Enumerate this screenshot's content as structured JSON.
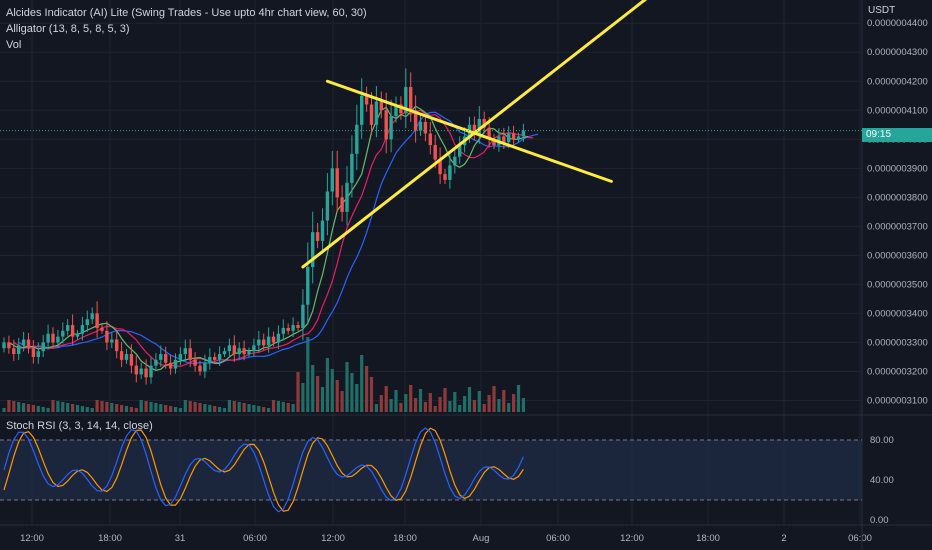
{
  "currency": "USDT",
  "legend": {
    "line1": "Alcides Indicator (AI) Lite (Swing Trades - Use upto 4hr chart view, 60, 30)",
    "line2": "Alligator (13, 8, 5, 8, 5, 3)",
    "line3": "Vol",
    "stoch_label": "Stoch RSI (3, 3, 14, 14, close)"
  },
  "countdown": "09:15",
  "colors": {
    "background": "#131722",
    "up": "#26a69a",
    "down": "#ef5350",
    "trendline": "#ffeb3b",
    "jaw": "#2962ff",
    "teeth": "#e91e63",
    "lips": "#66bb6a",
    "stoch_k": "#2962ff",
    "stoch_d": "#ff9800"
  },
  "chart_data": [
    {
      "type": "candlestick",
      "title": "",
      "ylim": [
        3.05e-07,
        4.48e-07
      ],
      "y_ticks": [
        "0.0000004400",
        "0.0000004300",
        "0.0000004200",
        "0.0000004100",
        "0.0000004000",
        "0.0000003900",
        "0.0000003800",
        "0.0000003700",
        "0.0000003600",
        "0.0000003500",
        "0.0000003400",
        "0.0000003300",
        "0.0000003200",
        "0.0000003100"
      ],
      "x_ticks": [
        "12:00",
        "18:00",
        "31",
        "06:00",
        "12:00",
        "18:00",
        "Aug",
        "06:00",
        "12:00",
        "18:00",
        "2",
        "06:00"
      ],
      "closes": [
        3.3e-07,
        3.28e-07,
        3.26e-07,
        3.29e-07,
        3.31e-07,
        3.28e-07,
        3.25e-07,
        3.27e-07,
        3.3e-07,
        3.33e-07,
        3.3e-07,
        3.32e-07,
        3.34e-07,
        3.36e-07,
        3.32e-07,
        3.33e-07,
        3.36e-07,
        3.38e-07,
        3.4e-07,
        3.35e-07,
        3.34e-07,
        3.3e-07,
        3.31e-07,
        3.27e-07,
        3.24e-07,
        3.26e-07,
        3.22e-07,
        3.19e-07,
        3.21e-07,
        3.18e-07,
        3.22e-07,
        3.24e-07,
        3.26e-07,
        3.23e-07,
        3.21e-07,
        3.24e-07,
        3.26e-07,
        3.28e-07,
        3.24e-07,
        3.22e-07,
        3.2e-07,
        3.23e-07,
        3.25e-07,
        3.24e-07,
        3.26e-07,
        3.27e-07,
        3.29e-07,
        3.26e-07,
        3.28e-07,
        3.26e-07,
        3.27e-07,
        3.29e-07,
        3.31e-07,
        3.29e-07,
        3.32e-07,
        3.3e-07,
        3.33e-07,
        3.35e-07,
        3.34e-07,
        3.36e-07,
        3.35e-07,
        3.43e-07,
        3.56e-07,
        3.68e-07,
        3.65e-07,
        3.72e-07,
        3.82e-07,
        3.9e-07,
        3.8e-07,
        3.75e-07,
        3.85e-07,
        3.95e-07,
        4.05e-07,
        4.15e-07,
        4.12e-07,
        4.05e-07,
        4.13e-07,
        4.1e-07,
        4e-07,
        4.08e-07,
        4.12e-07,
        4.09e-07,
        4.18e-07,
        4.1e-07,
        4.03e-07,
        4.06e-07,
        4.02e-07,
        3.98e-07,
        3.93e-07,
        3.88e-07,
        3.86e-07,
        3.91e-07,
        3.94e-07,
        3.98e-07,
        4.01e-07,
        4.05e-07,
        4.02e-07,
        4.07e-07,
        4.04e-07,
        4e-07,
        3.98e-07,
        4.01e-07,
        3.99e-07,
        4.02e-07,
        4e-07,
        4.01e-07,
        4.03e-07
      ],
      "stoch_rsi": {
        "ylim": [
          -5,
          105
        ],
        "y_ticks": [
          "80.00",
          "40.00",
          "0.00"
        ],
        "band": [
          20,
          80
        ]
      },
      "trendlines": [
        {
          "from_index": 61,
          "from_price": 3.56e-07,
          "to_index": 108,
          "to_price": 4.18e-07
        },
        {
          "from_index": 66,
          "from_price": 4.2e-07,
          "to_index": 108,
          "to_price": 3.95e-07
        }
      ]
    }
  ]
}
